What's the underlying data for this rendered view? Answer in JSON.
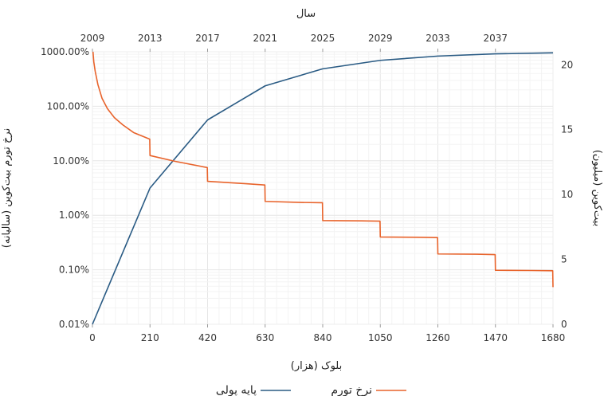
{
  "chart_data": {
    "type": "line",
    "title": "",
    "top_axis": {
      "label": "سال",
      "ticks": [
        "2009",
        "2013",
        "2017",
        "2021",
        "2025",
        "2029",
        "2033",
        "2037"
      ]
    },
    "x_axis": {
      "label": "بلوک (هزار)",
      "range": [
        0,
        1680
      ],
      "ticks": [
        0,
        210,
        420,
        630,
        840,
        1050,
        1260,
        1470,
        1680
      ],
      "tick_labels": [
        "0",
        "210",
        "420",
        "630",
        "840",
        "1050",
        "1260",
        "1470",
        "1680"
      ]
    },
    "y_left": {
      "label": "نرخ تورم بیت‌کوین (سالیانه)",
      "scale": "log",
      "range": [
        0.01,
        1000
      ],
      "ticks": [
        0.01,
        0.1,
        1,
        10,
        100,
        1000
      ],
      "tick_labels": [
        "0.01%",
        "0.10%",
        "1.00%",
        "10.00%",
        "100.00%",
        "1000.00%"
      ]
    },
    "y_right": {
      "label": "بیت‌کوین (میلیون)",
      "scale": "linear",
      "range": [
        0,
        21
      ],
      "ticks": [
        0,
        5,
        10,
        15,
        20
      ],
      "tick_labels": [
        "0",
        "5",
        "10",
        "15",
        "20"
      ]
    },
    "grid": true,
    "legend_position": "bottom",
    "series": [
      {
        "name": "پایه پولی",
        "axis": "right",
        "color": "#2a5b84",
        "x": [
          0,
          210,
          420,
          630,
          840,
          1050,
          1260,
          1470,
          1680
        ],
        "y": [
          0,
          10.5,
          15.75,
          18.375,
          19.6875,
          20.34,
          20.67,
          20.84,
          20.92
        ]
      },
      {
        "name": "نرخ تورم",
        "axis": "left",
        "color": "#e8632b",
        "x": [
          2,
          5,
          10,
          20,
          35,
          55,
          80,
          110,
          150,
          200,
          209,
          210,
          300,
          419,
          420,
          560,
          629,
          630,
          760,
          839,
          840,
          980,
          1049,
          1050,
          1200,
          1259,
          1260,
          1400,
          1469,
          1470,
          1600,
          1679,
          1680
        ],
        "y": [
          1000,
          650,
          440,
          250,
          140,
          90,
          62,
          46,
          33,
          26,
          25,
          12.5,
          9.8,
          7.5,
          4.2,
          3.8,
          3.6,
          1.8,
          1.72,
          1.7,
          0.8,
          0.79,
          0.78,
          0.4,
          0.395,
          0.39,
          0.195,
          0.193,
          0.19,
          0.098,
          0.097,
          0.096,
          0.048
        ]
      }
    ]
  }
}
